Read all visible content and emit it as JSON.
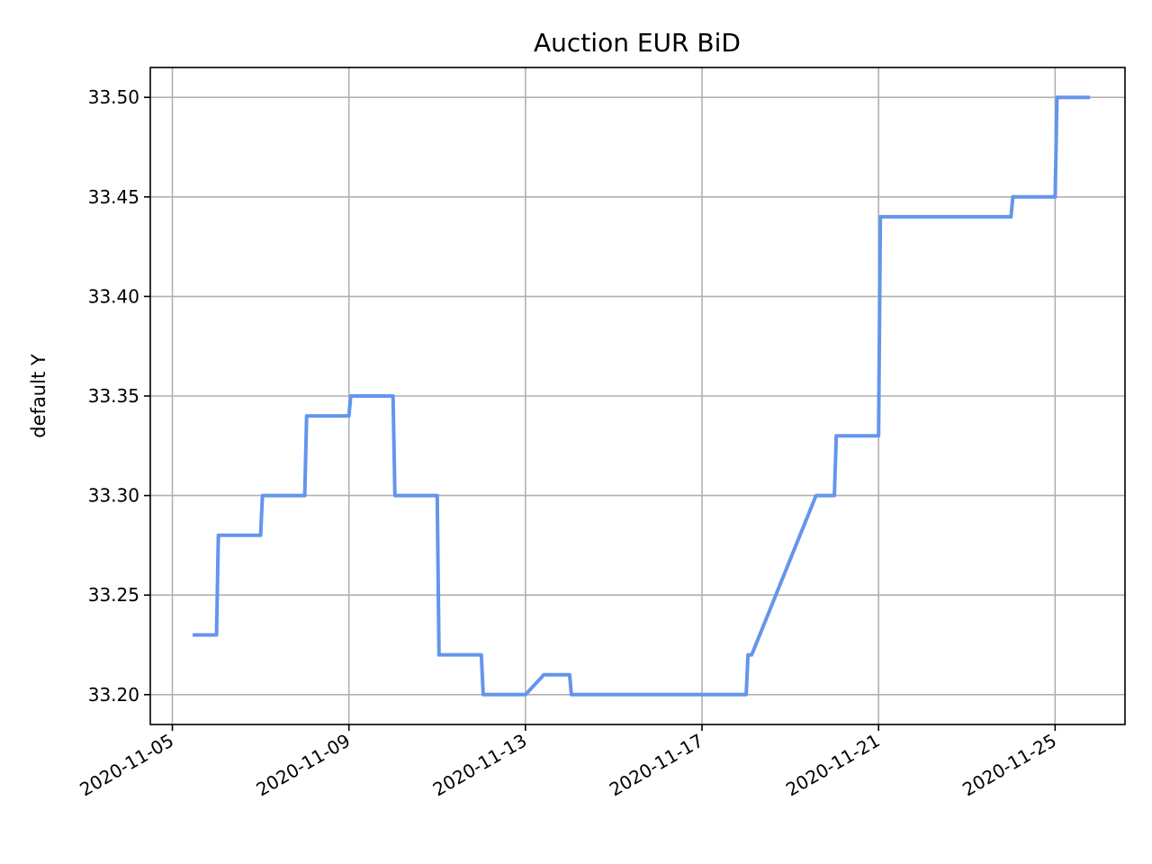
{
  "chart_data": {
    "type": "line",
    "title": "Auction EUR  BiD",
    "xlabel": "",
    "ylabel": "default Y",
    "grid": true,
    "x_ticks": [
      "2020-11-05",
      "2020-11-09",
      "2020-11-13",
      "2020-11-17",
      "2020-11-21",
      "2020-11-25"
    ],
    "y_ticks": [
      "33.20",
      "33.25",
      "33.30",
      "33.35",
      "33.40",
      "33.45",
      "33.50"
    ],
    "xlim": [
      "2020-11-04T12:00",
      "2020-11-26T14:00"
    ],
    "ylim": [
      33.185,
      33.515
    ],
    "series": [
      {
        "color": "#6495ED",
        "points": [
          [
            "2020-11-05T12:00",
            33.23
          ],
          [
            "2020-11-06T00:00",
            33.23
          ],
          [
            "2020-11-06T01:00",
            33.28
          ],
          [
            "2020-11-07T00:00",
            33.28
          ],
          [
            "2020-11-07T01:00",
            33.3
          ],
          [
            "2020-11-08T00:00",
            33.3
          ],
          [
            "2020-11-08T01:00",
            33.34
          ],
          [
            "2020-11-09T00:00",
            33.34
          ],
          [
            "2020-11-09T01:00",
            33.35
          ],
          [
            "2020-11-10T00:00",
            33.35
          ],
          [
            "2020-11-10T01:00",
            33.3
          ],
          [
            "2020-11-11T00:00",
            33.3
          ],
          [
            "2020-11-11T01:00",
            33.22
          ],
          [
            "2020-11-12T00:00",
            33.22
          ],
          [
            "2020-11-12T01:00",
            33.2
          ],
          [
            "2020-11-13T00:00",
            33.2
          ],
          [
            "2020-11-13T10:00",
            33.21
          ],
          [
            "2020-11-14T00:00",
            33.21
          ],
          [
            "2020-11-14T01:00",
            33.2
          ],
          [
            "2020-11-18T00:00",
            33.2
          ],
          [
            "2020-11-18T01:00",
            33.22
          ],
          [
            "2020-11-18T03:00",
            33.22
          ],
          [
            "2020-11-19T14:00",
            33.3
          ],
          [
            "2020-11-20T00:00",
            33.3
          ],
          [
            "2020-11-20T01:00",
            33.33
          ],
          [
            "2020-11-21T00:00",
            33.33
          ],
          [
            "2020-11-21T01:00",
            33.44
          ],
          [
            "2020-11-24T00:00",
            33.44
          ],
          [
            "2020-11-24T01:00",
            33.45
          ],
          [
            "2020-11-25T00:00",
            33.45
          ],
          [
            "2020-11-25T01:00",
            33.5
          ],
          [
            "2020-11-25T18:00",
            33.5
          ]
        ]
      }
    ]
  }
}
